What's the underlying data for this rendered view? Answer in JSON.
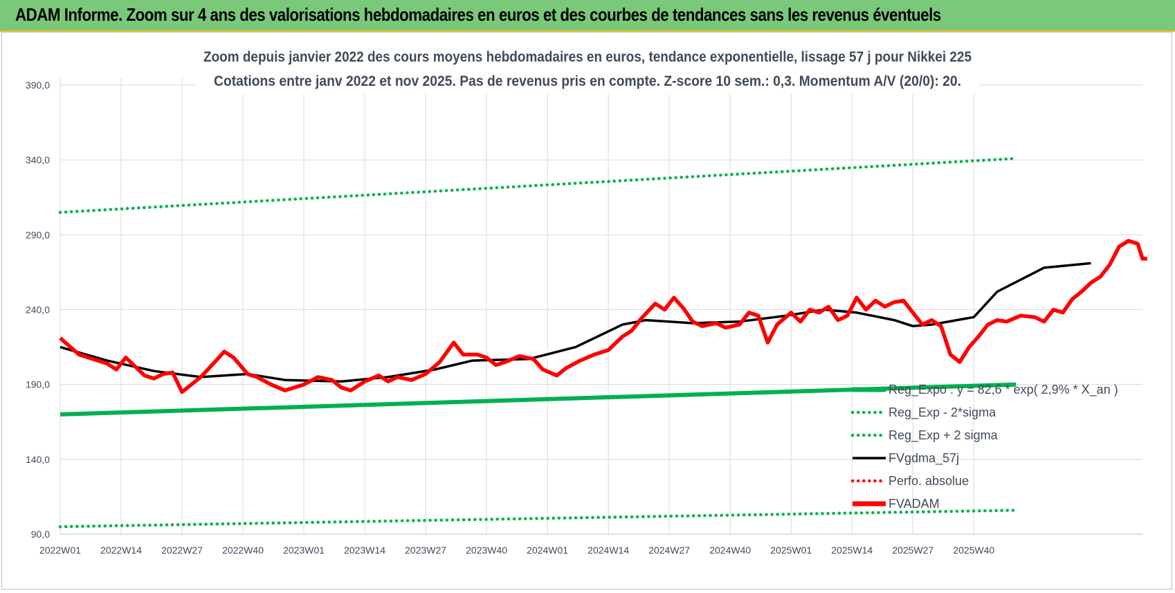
{
  "banner": {
    "title": "ADAM Informe. Zoom sur 4 ans des valorisations hebdomadaires en euros et des courbes de tendances sans les revenus éventuels"
  },
  "colors": {
    "banner_bg": "#7ac879",
    "banner_border": "#f0c020",
    "trend_green": "#00b050",
    "fvadam_red": "#ff0000",
    "mma_black": "#000000",
    "text": "#404a5a",
    "grid": "#d9d9d9"
  },
  "chart_data": {
    "type": "line",
    "title": "Zoom depuis janvier 2022 des cours moyens hebdomadaires en euros, tendance exponentielle, lissage 57 j pour Nikkei 225",
    "subtitle": "Cotations entre janv 2022 et nov 2025. Pas de revenus pris en compte. Z-score 10 sem.: 0,3. Momentum A/V (20/0): 20.",
    "xlabel": "",
    "ylabel": "",
    "ylim": [
      90,
      390
    ],
    "yticks": [
      "90,0",
      "140,0",
      "190,0",
      "240,0",
      "290,0",
      "340,0",
      "390,0"
    ],
    "xticks": [
      "2022W01",
      "2022W14",
      "2022W27",
      "2022W40",
      "2023W01",
      "2023W14",
      "2023W27",
      "2023W40",
      "2024W01",
      "2024W14",
      "2024W27",
      "2024W40",
      "2025W01",
      "2025W14",
      "2025W27",
      "2025W40"
    ],
    "x_range_weeks": [
      0,
      204
    ],
    "grid": true,
    "legend_position": "bottom-right",
    "series": [
      {
        "name": "Reg_Expo : y = 82,6 * exp( 2,9% * X_an )",
        "style": "solid-thick",
        "color": "#00b050",
        "points": [
          [
            0,
            170
          ],
          [
            204,
            190
          ]
        ]
      },
      {
        "name": "Reg_Exp - 2*sigma",
        "style": "dotted",
        "color": "#00b050",
        "points": [
          [
            0,
            95
          ],
          [
            204,
            106
          ]
        ]
      },
      {
        "name": "Reg_Exp + 2 sigma",
        "style": "dotted",
        "color": "#00b050",
        "points": [
          [
            0,
            305
          ],
          [
            204,
            341
          ]
        ]
      },
      {
        "name": "FVgdma_57j",
        "style": "solid",
        "color": "#000000",
        "points": [
          [
            0,
            215
          ],
          [
            10,
            206
          ],
          [
            20,
            199
          ],
          [
            30,
            195
          ],
          [
            40,
            197
          ],
          [
            48,
            193
          ],
          [
            60,
            192
          ],
          [
            70,
            195
          ],
          [
            80,
            200
          ],
          [
            88,
            206
          ],
          [
            100,
            207
          ],
          [
            110,
            215
          ],
          [
            120,
            230
          ],
          [
            125,
            233
          ],
          [
            135,
            231
          ],
          [
            145,
            232
          ],
          [
            155,
            236
          ],
          [
            163,
            240
          ],
          [
            170,
            238
          ],
          [
            178,
            233
          ],
          [
            182,
            229
          ],
          [
            186,
            230
          ],
          [
            195,
            235
          ],
          [
            200,
            252
          ],
          [
            210,
            268
          ],
          [
            220,
            271
          ]
        ]
      },
      {
        "name": "Perfo. absolue",
        "style": "dotted",
        "color": "#ff0000",
        "points": []
      },
      {
        "name": "FVADAM",
        "style": "solid-thick",
        "color": "#ff0000",
        "points": [
          [
            0,
            221
          ],
          [
            4,
            210
          ],
          [
            7,
            207
          ],
          [
            10,
            204
          ],
          [
            12,
            200
          ],
          [
            14,
            208
          ],
          [
            16,
            202
          ],
          [
            18,
            196
          ],
          [
            20,
            194
          ],
          [
            22,
            197
          ],
          [
            24,
            198
          ],
          [
            26,
            185
          ],
          [
            28,
            190
          ],
          [
            30,
            195
          ],
          [
            33,
            205
          ],
          [
            35,
            212
          ],
          [
            37,
            208
          ],
          [
            40,
            197
          ],
          [
            42,
            195
          ],
          [
            45,
            190
          ],
          [
            48,
            186
          ],
          [
            52,
            190
          ],
          [
            55,
            195
          ],
          [
            58,
            193
          ],
          [
            60,
            188
          ],
          [
            62,
            186
          ],
          [
            65,
            192
          ],
          [
            68,
            196
          ],
          [
            70,
            192
          ],
          [
            72,
            195
          ],
          [
            75,
            193
          ],
          [
            78,
            197
          ],
          [
            81,
            205
          ],
          [
            84,
            218
          ],
          [
            86,
            210
          ],
          [
            89,
            210
          ],
          [
            91,
            208
          ],
          [
            93,
            203
          ],
          [
            95,
            205
          ],
          [
            98,
            209
          ],
          [
            101,
            207
          ],
          [
            103,
            200
          ],
          [
            106,
            196
          ],
          [
            108,
            201
          ],
          [
            111,
            206
          ],
          [
            114,
            210
          ],
          [
            117,
            213
          ],
          [
            120,
            222
          ],
          [
            122,
            226
          ],
          [
            124,
            234
          ],
          [
            127,
            244
          ],
          [
            129,
            240
          ],
          [
            131,
            248
          ],
          [
            133,
            241
          ],
          [
            135,
            232
          ],
          [
            137,
            229
          ],
          [
            140,
            231
          ],
          [
            142,
            228
          ],
          [
            145,
            230
          ],
          [
            147,
            238
          ],
          [
            149,
            236
          ],
          [
            151,
            218
          ],
          [
            153,
            230
          ],
          [
            156,
            238
          ],
          [
            158,
            232
          ],
          [
            160,
            240
          ],
          [
            162,
            238
          ],
          [
            164,
            242
          ],
          [
            166,
            233
          ],
          [
            168,
            236
          ],
          [
            170,
            248
          ],
          [
            172,
            240
          ],
          [
            174,
            246
          ],
          [
            176,
            242
          ],
          [
            178,
            245
          ],
          [
            180,
            246
          ],
          [
            182,
            238
          ],
          [
            184,
            230
          ],
          [
            186,
            233
          ],
          [
            188,
            229
          ],
          [
            190,
            210
          ],
          [
            192,
            205
          ],
          [
            194,
            215
          ],
          [
            196,
            222
          ],
          [
            198,
            230
          ],
          [
            200,
            233
          ],
          [
            202,
            232
          ],
          [
            205,
            236
          ],
          [
            208,
            235
          ],
          [
            210,
            232
          ],
          [
            212,
            240
          ],
          [
            214,
            238
          ],
          [
            216,
            247
          ],
          [
            218,
            252
          ],
          [
            220,
            258
          ],
          [
            222,
            262
          ],
          [
            224,
            270
          ],
          [
            226,
            282
          ],
          [
            228,
            286
          ],
          [
            230,
            284
          ],
          [
            231,
            274
          ],
          [
            232,
            274
          ]
        ]
      }
    ]
  }
}
